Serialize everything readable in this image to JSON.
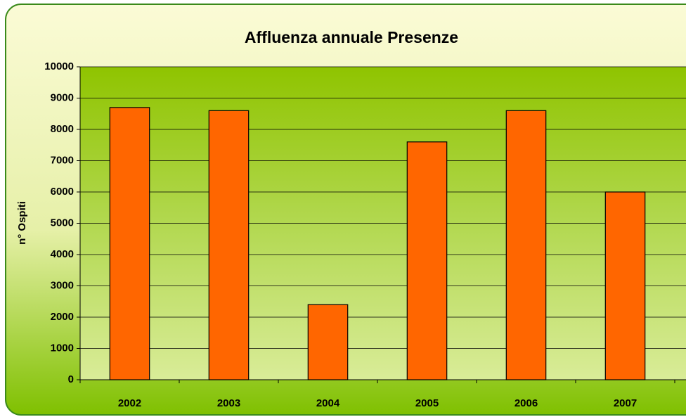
{
  "chart_data": {
    "type": "bar",
    "title": "Affluenza annuale Presenze",
    "y_label": "n° Ospiti",
    "categories": [
      "2002",
      "2003",
      "2004",
      "2005",
      "2006",
      "2007"
    ],
    "values": [
      8700,
      8600,
      2400,
      7600,
      8600,
      6000
    ],
    "color": "#ff6600",
    "ylim": [
      0,
      10000
    ],
    "yticks": [
      0,
      1000,
      2000,
      3000,
      4000,
      5000,
      6000,
      7000,
      8000,
      9000,
      10000
    ],
    "grid": true
  }
}
